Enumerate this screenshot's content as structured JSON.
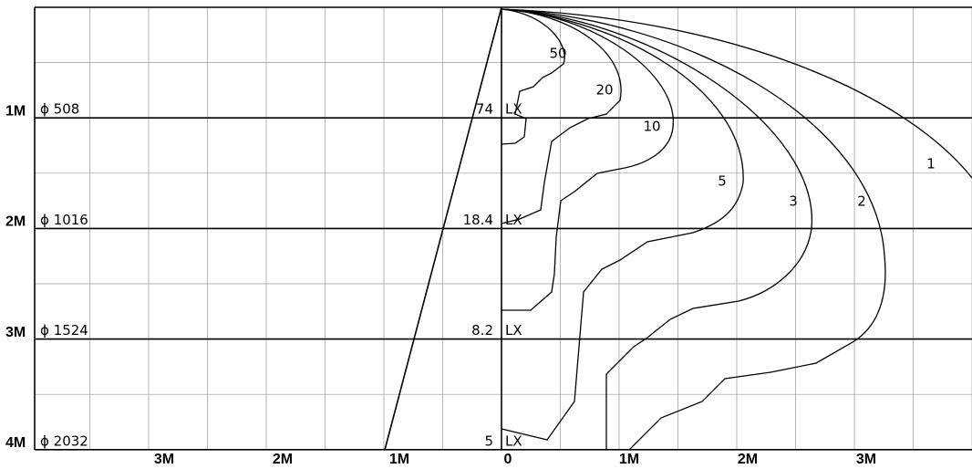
{
  "rows": [
    {
      "distance": "1M",
      "diameter": "ϕ 508",
      "lux": "74",
      "unit": "LX"
    },
    {
      "distance": "2M",
      "diameter": "ϕ 1016",
      "lux": "18.4",
      "unit": "LX"
    },
    {
      "distance": "3M",
      "diameter": "ϕ 1524",
      "lux": "8.2",
      "unit": "LX"
    },
    {
      "distance": "4M",
      "diameter": "ϕ 2032",
      "lux": "5",
      "unit": "LX"
    }
  ],
  "x_labels": [
    "3M",
    "2M",
    "1M",
    "0",
    "1M",
    "2M",
    "3M"
  ],
  "contour_labels": [
    "50",
    "20",
    "10",
    "5",
    "3",
    "2",
    "1"
  ]
}
